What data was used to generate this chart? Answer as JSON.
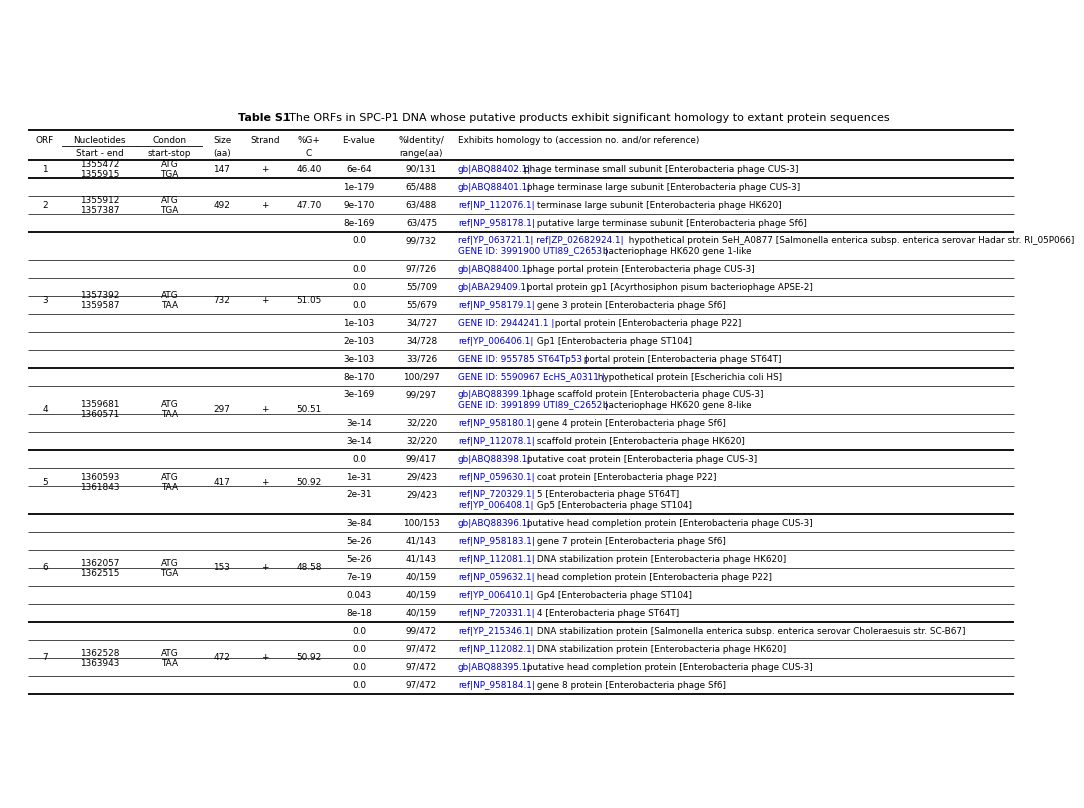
{
  "title_bold": "Table S1",
  "title_normal": ". The ORFs in SPC-P1 DNA whose putative products exhibit significant homology to extant protein sequences",
  "link_color": "#0000CC",
  "text_color": "#000000",
  "bg_color": "#ffffff",
  "rows": [
    {
      "orf": "1",
      "nuc": "1355472\n1355915",
      "codon": "ATG\nTGA",
      "size": "147",
      "strand": "+",
      "gc": "46.40",
      "evalue": "6e-64",
      "identity": "90/131",
      "hom_link": "gb|ABQ88402.1|",
      "hom_rest": "phage terminase small subunit [Enterobacteria phage CUS-3]",
      "extra_line": "",
      "extra_link": "",
      "orf_row": true,
      "thick_above": true
    },
    {
      "orf": "2",
      "nuc": "1355912\n1357387",
      "codon": "ATG\nTGA",
      "size": "492",
      "strand": "+",
      "gc": "47.70",
      "evalue": "1e-179",
      "identity": "65/488",
      "hom_link": "gb|ABQ88401.1|",
      "hom_rest": " phage terminase large subunit [Enterobacteria phage CUS-3]",
      "extra_line": "",
      "extra_link": "",
      "orf_row": true,
      "thick_above": true
    },
    {
      "orf": "",
      "nuc": "",
      "codon": "",
      "size": "",
      "strand": "",
      "gc": "",
      "evalue": "9e-170",
      "identity": "63/488",
      "hom_link": "ref|NP_112076.1|",
      "hom_rest": " terminase large subunit [Enterobacteria phage HK620]",
      "extra_line": "",
      "extra_link": "",
      "orf_row": false,
      "thick_above": false
    },
    {
      "orf": "",
      "nuc": "",
      "codon": "",
      "size": "",
      "strand": "",
      "gc": "",
      "evalue": "8e-169",
      "identity": "63/475",
      "hom_link": "ref|NP_958178.1|",
      "hom_rest": " putative large terminase subunit [Enterobacteria phage Sf6]",
      "extra_line": "",
      "extra_link": "",
      "orf_row": false,
      "thick_above": false
    },
    {
      "orf": "3",
      "nuc": "1357392\n1359587",
      "codon": "ATG\nTAA",
      "size": "732",
      "strand": "+",
      "gc": "51.05",
      "evalue": "0.0",
      "identity": "99/732",
      "hom_link": "ref|YP_063721.1| ref|ZP_02682924.1|",
      "hom_rest": "  hypothetical protein SeH_A0877 [Salmonella enterica subsp. enterica serovar Hadar str. RI_05P066]",
      "extra_line": "GENE ID: 3991900 UTI89_C2653 | bacteriophage HK620 gene 1-like",
      "extra_link": "GENE ID: 3991900 UTI89_C2653 |",
      "orf_row": true,
      "thick_above": true
    },
    {
      "orf": "",
      "nuc": "",
      "codon": "",
      "size": "",
      "strand": "",
      "gc": "",
      "evalue": "0.0",
      "identity": "97/726",
      "hom_link": "gb|ABQ88400.1|",
      "hom_rest": " phage portal protein [Enterobacteria phage CUS-3]",
      "extra_line": "",
      "extra_link": "",
      "orf_row": false,
      "thick_above": false
    },
    {
      "orf": "",
      "nuc": "",
      "codon": "",
      "size": "",
      "strand": "",
      "gc": "",
      "evalue": "0.0",
      "identity": "55/709",
      "hom_link": "gb|ABA29409.1|",
      "hom_rest": " portal protein gp1 [Acyrthosiphon pisum bacteriophage APSE-2]",
      "extra_line": "",
      "extra_link": "",
      "orf_row": false,
      "thick_above": false
    },
    {
      "orf": "",
      "nuc": "",
      "codon": "",
      "size": "",
      "strand": "",
      "gc": "",
      "evalue": "0.0",
      "identity": "55/679",
      "hom_link": "ref|NP_958179.1|",
      "hom_rest": " gene 3 protein [Enterobacteria phage Sf6]",
      "extra_line": "",
      "extra_link": "",
      "orf_row": false,
      "thick_above": false
    },
    {
      "orf": "",
      "nuc": "",
      "codon": "",
      "size": "",
      "strand": "",
      "gc": "",
      "evalue": "1e-103",
      "identity": "34/727",
      "hom_link": "GENE ID: 2944241.1 |",
      "hom_rest": " portal protein [Enterobacteria phage P22]",
      "extra_line": "",
      "extra_link": "",
      "orf_row": false,
      "thick_above": false
    },
    {
      "orf": "",
      "nuc": "",
      "codon": "",
      "size": "",
      "strand": "",
      "gc": "",
      "evalue": "2e-103",
      "identity": "34/728",
      "hom_link": "ref|YP_006406.1|",
      "hom_rest": " Gp1 [Enterobacteria phage ST104]",
      "extra_line": "",
      "extra_link": "",
      "orf_row": false,
      "thick_above": false
    },
    {
      "orf": "",
      "nuc": "",
      "codon": "",
      "size": "",
      "strand": "",
      "gc": "",
      "evalue": "3e-103",
      "identity": "33/726",
      "hom_link": "GENE ID: 955785 ST64Tp53 |",
      "hom_rest": " portal protein [Enterobacteria phage ST64T]",
      "extra_line": "",
      "extra_link": "",
      "orf_row": false,
      "thick_above": false
    },
    {
      "orf": "4",
      "nuc": "1359681\n1360571",
      "codon": "ATG\nTAA",
      "size": "297",
      "strand": "+",
      "gc": "50.51",
      "evalue": "8e-170",
      "identity": "100/297",
      "hom_link": "GENE ID: 5590967 EcHS_A0311 |",
      "hom_rest": " hypothetical protein [Escherichia coli HS]",
      "extra_line": "",
      "extra_link": "",
      "orf_row": true,
      "thick_above": true
    },
    {
      "orf": "",
      "nuc": "",
      "codon": "",
      "size": "",
      "strand": "",
      "gc": "",
      "evalue": "3e-169",
      "identity": "99/297",
      "hom_link": "gb|ABQ88399.1|",
      "hom_rest": " phage scaffold protein [Enterobacteria phage CUS-3]",
      "extra_line": "GENE ID: 3991899 UTI89_C2652 | bacteriophage HK620 gene 8-like",
      "extra_link": "GENE ID: 3991899 UTI89_C2652 |",
      "orf_row": false,
      "thick_above": false
    },
    {
      "orf": "",
      "nuc": "",
      "codon": "",
      "size": "",
      "strand": "",
      "gc": "",
      "evalue": "3e-14",
      "identity": "32/220",
      "hom_link": "ref|NP_958180.1|",
      "hom_rest": " gene 4 protein [Enterobacteria phage Sf6]",
      "extra_line": "",
      "extra_link": "",
      "orf_row": false,
      "thick_above": false
    },
    {
      "orf": "",
      "nuc": "",
      "codon": "",
      "size": "",
      "strand": "",
      "gc": "",
      "evalue": "3e-14",
      "identity": "32/220",
      "hom_link": "ref|NP_112078.1|",
      "hom_rest": " scaffold protein [Enterobacteria phage HK620]",
      "extra_line": "",
      "extra_link": "",
      "orf_row": false,
      "thick_above": false
    },
    {
      "orf": "5",
      "nuc": "1360593\n1361843",
      "codon": "ATG\nTAA",
      "size": "417",
      "strand": "+",
      "gc": "50.92",
      "evalue": "0.0",
      "identity": "99/417",
      "hom_link": "gb|ABQ88398.1|",
      "hom_rest": " putative coat protein [Enterobacteria phage CUS-3]",
      "extra_line": "",
      "extra_link": "",
      "orf_row": true,
      "thick_above": true
    },
    {
      "orf": "",
      "nuc": "",
      "codon": "",
      "size": "",
      "strand": "",
      "gc": "",
      "evalue": "1e-31",
      "identity": "29/423",
      "hom_link": "ref|NP_059630.1|",
      "hom_rest": " coat protein [Enterobacteria phage P22]",
      "extra_line": "",
      "extra_link": "",
      "orf_row": false,
      "thick_above": false
    },
    {
      "orf": "",
      "nuc": "",
      "codon": "",
      "size": "",
      "strand": "",
      "gc": "",
      "evalue": "2e-31",
      "identity": "29/423",
      "hom_link": "ref|NP_720329.1|",
      "hom_rest": " 5 [Enterobacteria phage ST64T]",
      "extra_line": "ref|YP_006408.1| Gp5 [Enterobacteria phage ST104]",
      "extra_link": "ref|YP_006408.1|",
      "orf_row": false,
      "thick_above": false
    },
    {
      "orf": "6",
      "nuc": "1362057\n1362515",
      "codon": "ATG\nTGA",
      "size": "153",
      "strand": "+",
      "gc": "48.58",
      "evalue": "3e-84",
      "identity": "100/153",
      "hom_link": "gb|ABQ88396.1|",
      "hom_rest": " putative head completion protein [Enterobacteria phage CUS-3]",
      "extra_line": "",
      "extra_link": "",
      "orf_row": true,
      "thick_above": true
    },
    {
      "orf": "",
      "nuc": "",
      "codon": "",
      "size": "",
      "strand": "",
      "gc": "",
      "evalue": "5e-26",
      "identity": "41/143",
      "hom_link": "ref|NP_958183.1|",
      "hom_rest": " gene 7 protein [Enterobacteria phage Sf6]",
      "extra_line": "",
      "extra_link": "",
      "orf_row": false,
      "thick_above": false
    },
    {
      "orf": "",
      "nuc": "",
      "codon": "",
      "size": "",
      "strand": "",
      "gc": "",
      "evalue": "5e-26",
      "identity": "41/143",
      "hom_link": "ref|NP_112081.1|",
      "hom_rest": " DNA stabilization protein [Enterobacteria phage HK620]",
      "extra_line": "",
      "extra_link": "",
      "orf_row": false,
      "thick_above": false
    },
    {
      "orf": "",
      "nuc": "",
      "codon": "",
      "size": "",
      "strand": "",
      "gc": "",
      "evalue": "7e-19",
      "identity": "40/159",
      "hom_link": "ref|NP_059632.1|",
      "hom_rest": " head completion protein [Enterobacteria phage P22]",
      "extra_line": "",
      "extra_link": "",
      "orf_row": false,
      "thick_above": false
    },
    {
      "orf": "",
      "nuc": "",
      "codon": "",
      "size": "",
      "strand": "",
      "gc": "",
      "evalue": "0.043",
      "identity": "40/159",
      "hom_link": "ref|YP_006410.1|",
      "hom_rest": " Gp4 [Enterobacteria phage ST104]",
      "extra_line": "",
      "extra_link": "",
      "orf_row": false,
      "thick_above": false
    },
    {
      "orf": "",
      "nuc": "",
      "codon": "",
      "size": "",
      "strand": "",
      "gc": "",
      "evalue": "8e-18",
      "identity": "40/159",
      "hom_link": "ref|NP_720331.1|",
      "hom_rest": " 4 [Enterobacteria phage ST64T]",
      "extra_line": "",
      "extra_link": "",
      "orf_row": false,
      "thick_above": false
    },
    {
      "orf": "7",
      "nuc": "1362528\n1363943",
      "codon": "ATG\nTAA",
      "size": "472",
      "strand": "+",
      "gc": "50.92",
      "evalue": "0.0",
      "identity": "99/472",
      "hom_link": "ref|YP_215346.1|",
      "hom_rest": " DNA stabilization protein [Salmonella enterica subsp. enterica serovar Choleraesuis str. SC-B67]",
      "extra_line": "",
      "extra_link": "",
      "orf_row": true,
      "thick_above": true
    },
    {
      "orf": "",
      "nuc": "",
      "codon": "",
      "size": "",
      "strand": "",
      "gc": "",
      "evalue": "0.0",
      "identity": "97/472",
      "hom_link": "ref|NP_112082.1|",
      "hom_rest": " DNA stabilization protein [Enterobacteria phage HK620]",
      "extra_line": "",
      "extra_link": "",
      "orf_row": false,
      "thick_above": false
    },
    {
      "orf": "",
      "nuc": "",
      "codon": "",
      "size": "",
      "strand": "",
      "gc": "",
      "evalue": "0.0",
      "identity": "97/472",
      "hom_link": "gb|ABQ88395.1|",
      "hom_rest": " putative head completion protein [Enterobacteria phage CUS-3]",
      "extra_line": "",
      "extra_link": "",
      "orf_row": false,
      "thick_above": false
    },
    {
      "orf": "",
      "nuc": "",
      "codon": "",
      "size": "",
      "strand": "",
      "gc": "",
      "evalue": "0.0",
      "identity": "97/472",
      "hom_link": "ref|NP_958184.1|",
      "hom_rest": " gene 8 protein [Enterobacteria phage Sf6]",
      "extra_line": "",
      "extra_link": "",
      "orf_row": false,
      "thick_above": false
    }
  ]
}
